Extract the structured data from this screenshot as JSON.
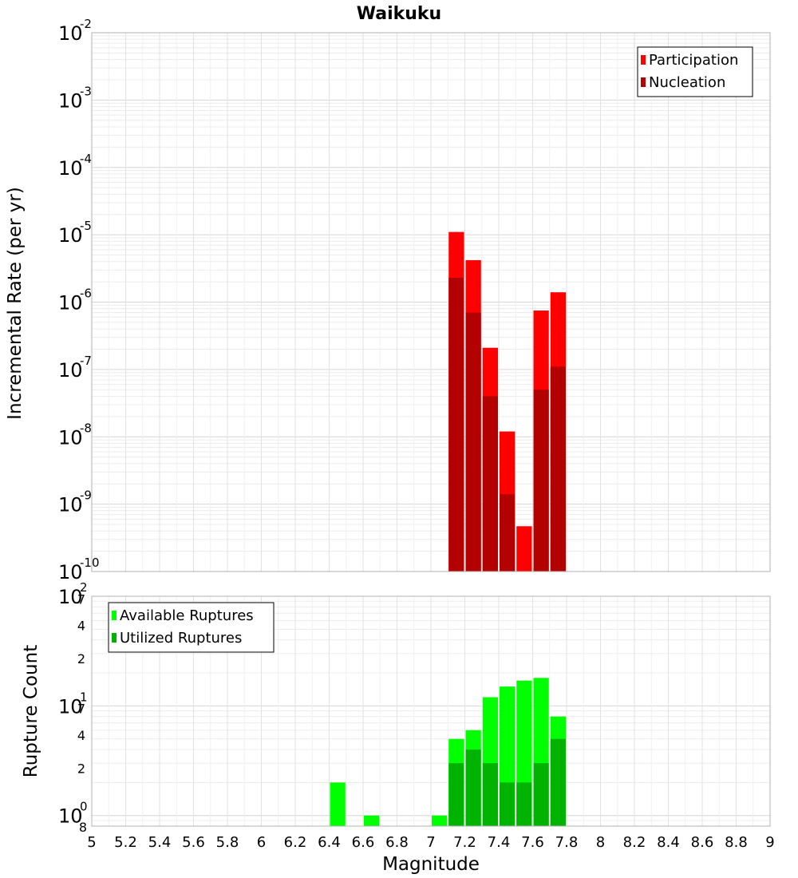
{
  "chart_data": [
    {
      "type": "bar",
      "title": "Waikuku",
      "ylabel": "Incremental Rate (per yr)",
      "xlabel": "",
      "y_scale": "log",
      "ylim": [
        1e-10,
        0.01
      ],
      "xlim": [
        5,
        9
      ],
      "grid": true,
      "legend_position": "top-right",
      "bar_width": 0.1,
      "y_major_ticks": [
        {
          "base": "10",
          "exp": "-10",
          "value": 1e-10
        },
        {
          "base": "10",
          "exp": "-9",
          "value": 1e-09
        },
        {
          "base": "10",
          "exp": "-8",
          "value": 1e-08
        },
        {
          "base": "10",
          "exp": "-7",
          "value": 1e-07
        },
        {
          "base": "10",
          "exp": "-6",
          "value": 1e-06
        },
        {
          "base": "10",
          "exp": "-5",
          "value": 1e-05
        },
        {
          "base": "10",
          "exp": "-4",
          "value": 0.0001
        },
        {
          "base": "10",
          "exp": "-3",
          "value": 0.001
        },
        {
          "base": "10",
          "exp": "-2",
          "value": 0.01
        }
      ],
      "series": [
        {
          "name": "Participation",
          "color": "#ff0000",
          "x": [
            7.15,
            7.25,
            7.35,
            7.45,
            7.55,
            7.65,
            7.75
          ],
          "values": [
            1.1e-05,
            4.2e-06,
            2.1e-07,
            1.2e-08,
            4.7e-10,
            7.5e-07,
            1.4e-06
          ]
        },
        {
          "name": "Nucleation",
          "color": "#b30000",
          "x": [
            7.15,
            7.25,
            7.35,
            7.45,
            7.55,
            7.65,
            7.75
          ],
          "values": [
            2.3e-06,
            7e-07,
            4e-08,
            1.4e-09,
            1e-10,
            5e-08,
            1.1e-07
          ]
        }
      ]
    },
    {
      "type": "bar",
      "title": "",
      "xlabel": "Magnitude",
      "ylabel": "Rupture Count",
      "y_scale": "log",
      "ylim": [
        0.8,
        100
      ],
      "xlim": [
        5,
        9
      ],
      "grid": true,
      "legend_position": "top-left",
      "bar_width": 0.1,
      "x_ticks": [
        "5",
        "5.2",
        "5.4",
        "5.6",
        "5.8",
        "6",
        "6.2",
        "6.4",
        "6.6",
        "6.8",
        "7",
        "7.2",
        "7.4",
        "7.6",
        "7.8",
        "8",
        "8.2",
        "8.4",
        "8.6",
        "8.8",
        "9"
      ],
      "y_major_ticks": [
        {
          "base": "10",
          "exp": "0",
          "value": 1
        },
        {
          "base": "10",
          "exp": "1",
          "value": 10
        },
        {
          "base": "10",
          "exp": "2",
          "value": 100
        }
      ],
      "y_minor_labels": [
        {
          "label": "8",
          "value": 0.8
        },
        {
          "label": "2",
          "value": 2
        },
        {
          "label": "4",
          "value": 4
        },
        {
          "label": "7",
          "value": 7
        },
        {
          "label": "2",
          "value": 20
        },
        {
          "label": "4",
          "value": 40
        },
        {
          "label": "7",
          "value": 70
        }
      ],
      "series": [
        {
          "name": "Available Ruptures",
          "color": "#00ff00",
          "x": [
            6.45,
            6.65,
            7.05,
            7.15,
            7.25,
            7.35,
            7.45,
            7.55,
            7.65,
            7.75
          ],
          "values": [
            2,
            1,
            1,
            5,
            6,
            12,
            15,
            17,
            18,
            8
          ]
        },
        {
          "name": "Utilized Ruptures",
          "color": "#00b300",
          "x": [
            7.15,
            7.25,
            7.35,
            7.45,
            7.55,
            7.65,
            7.75
          ],
          "values": [
            3,
            4,
            3,
            2,
            2,
            3,
            5
          ]
        }
      ]
    }
  ]
}
